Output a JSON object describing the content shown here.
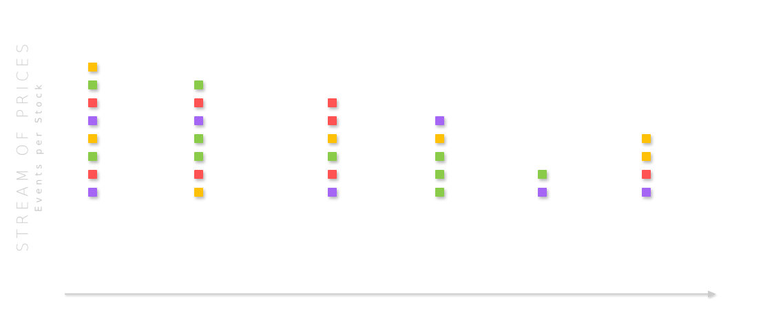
{
  "title": {
    "main": "STREAM OF PRICES",
    "sub": "Events per Stock"
  },
  "colors": {
    "yellow": "#FFC107",
    "green": "#8BCB4A",
    "red": "#FF5252",
    "purple": "#A565F5",
    "arrow": "#cccccc"
  },
  "columns": [
    {
      "events": [
        "yellow",
        "green",
        "red",
        "purple",
        "yellow",
        "green",
        "red",
        "purple"
      ]
    },
    {
      "events": [
        "green",
        "red",
        "purple",
        "green",
        "green",
        "red",
        "yellow"
      ]
    },
    {
      "events": [
        "red",
        "red",
        "yellow",
        "green",
        "red",
        "purple"
      ]
    },
    {
      "events": [
        "purple",
        "yellow",
        "green",
        "green",
        "green"
      ]
    },
    {
      "events": [
        "green",
        "purple"
      ]
    },
    {
      "events": [
        "yellow",
        "yellow",
        "red",
        "purple"
      ]
    }
  ]
}
